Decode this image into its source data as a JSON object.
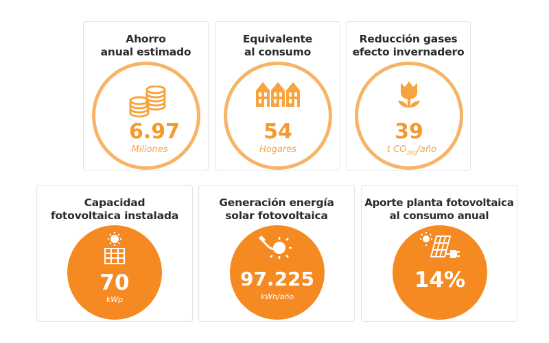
{
  "cards": [
    {
      "title": "Ahorro\nanual estimado",
      "value": "6.97",
      "unit": "Millones",
      "icon": "coins-icon"
    },
    {
      "title": "Equivalente\nal consumo",
      "value": "54",
      "unit": "Hogares",
      "icon": "houses-icon"
    },
    {
      "title": "Reducción gases\nefecto invernadero",
      "value": "39",
      "unit": "t CO2eq/año",
      "unit_main": "t CO",
      "unit_sub": "2eq",
      "unit_tail": "/año",
      "icon": "tulip-icon"
    },
    {
      "title": "Capacidad\nfotovoltaica instalada",
      "value": "70",
      "unit": "kWp",
      "icon": "sun-panel-icon"
    },
    {
      "title": "Generación energía\nsolar fotovoltaica",
      "value": "97.225",
      "unit": "kWh/año",
      "icon": "sun-plug-icon"
    },
    {
      "title": "Aporte planta fotovoltaica\nal consumo anual",
      "value": "14%",
      "unit": "",
      "icon": "panel-plug-icon"
    }
  ],
  "colors": {
    "ring": "#f7b466",
    "fill": "#f58a22",
    "value": "#f39a2d",
    "title": "#2b2b2b"
  }
}
